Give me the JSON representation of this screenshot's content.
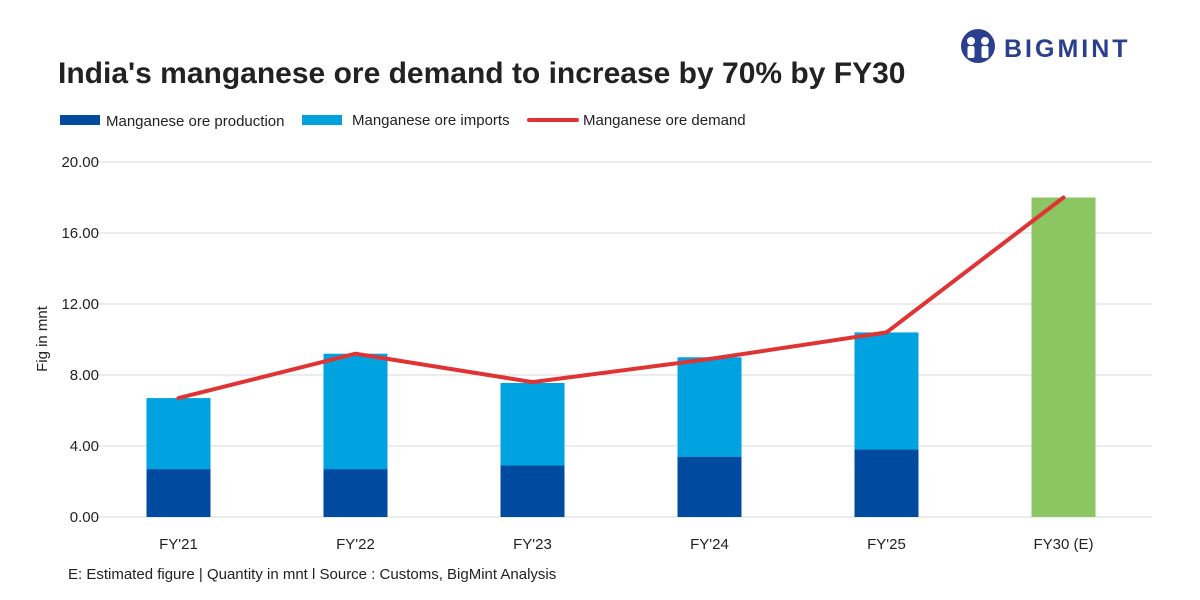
{
  "brand": {
    "name": "BIGMINT",
    "color": "#2b3f8f"
  },
  "colors": {
    "production": "#004aa0",
    "imports": "#00a3e0",
    "demand": "#e03434",
    "estimate": "#8bc662",
    "grid": "#d9d9d9"
  },
  "footer": "E: Estimated figure | Quantity in mnt l Source : Customs, BigMint Analysis",
  "chart_data": {
    "type": "bar",
    "stacked": true,
    "title": "India's manganese ore demand to increase by 70% by FY30",
    "xlabel": "",
    "ylabel": "Fig in mnt",
    "ylim": [
      0,
      20
    ],
    "yticks": [
      "0.00",
      "4.00",
      "8.00",
      "12.00",
      "16.00",
      "20.00"
    ],
    "grid": true,
    "legend_position": "top-left",
    "categories": [
      "FY'21",
      "FY'22",
      "FY'23",
      "FY'24",
      "FY'25",
      "FY30 (E)"
    ],
    "series": [
      {
        "name": "Manganese ore production",
        "kind": "bar",
        "values": [
          2.7,
          2.7,
          2.9,
          3.4,
          3.8,
          null
        ]
      },
      {
        "name": "Manganese ore imports",
        "kind": "bar",
        "values": [
          4.0,
          6.5,
          4.65,
          5.6,
          6.6,
          null
        ]
      },
      {
        "name": "Manganese ore demand",
        "kind": "line",
        "values": [
          6.7,
          9.2,
          7.6,
          8.9,
          10.4,
          18.0
        ]
      },
      {
        "name": "Estimated demand",
        "kind": "bar",
        "values": [
          null,
          null,
          null,
          null,
          null,
          18.0
        ],
        "in_legend": false
      }
    ]
  }
}
